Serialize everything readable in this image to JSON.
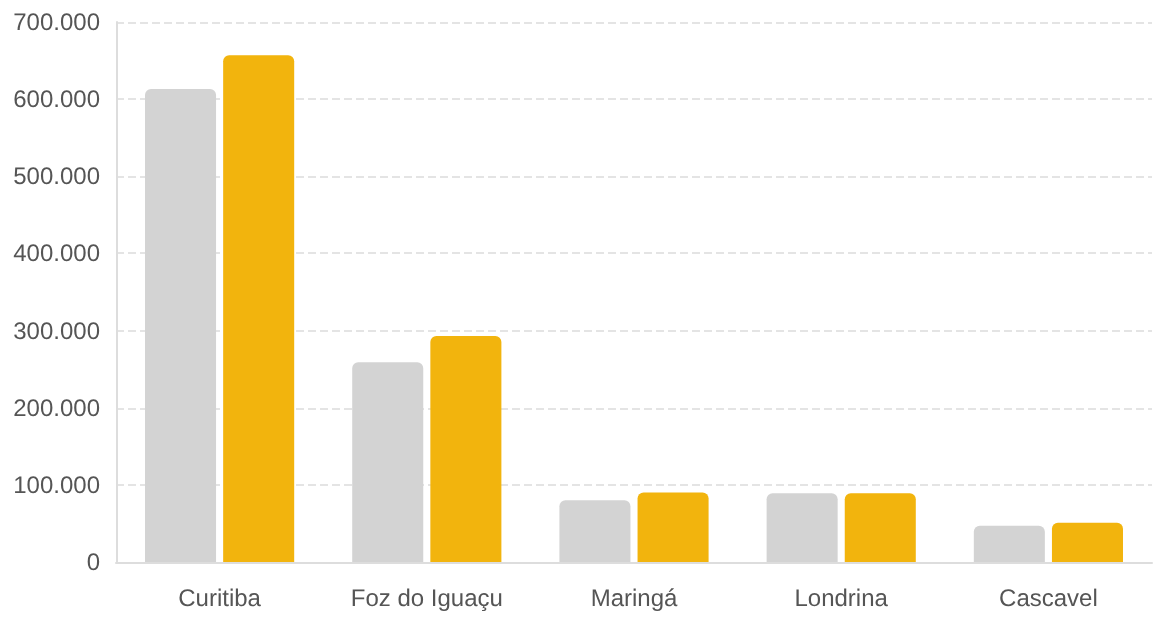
{
  "chart_data": {
    "type": "bar",
    "categories": [
      "Curitiba",
      "Foz do Iguaçu",
      "Maringá",
      "Londrina",
      "Cascavel"
    ],
    "series": [
      {
        "color": "#d3d3d3",
        "values": [
          613000,
          259000,
          80000,
          89000,
          47000
        ]
      },
      {
        "color": "#f2b40d",
        "values": [
          657000,
          293000,
          90000,
          89000,
          51000
        ]
      }
    ],
    "ylim": [
      0,
      700000
    ],
    "yticks": [
      {
        "value": 0,
        "label": "0"
      },
      {
        "value": 100000,
        "label": "100.000"
      },
      {
        "value": 200000,
        "label": "200.000"
      },
      {
        "value": 300000,
        "label": "300.000"
      },
      {
        "value": 400000,
        "label": "400.000"
      },
      {
        "value": 500000,
        "label": "500.000"
      },
      {
        "value": 600000,
        "label": "600.000"
      },
      {
        "value": 700000,
        "label": "700.000"
      }
    ],
    "grid": "y"
  }
}
